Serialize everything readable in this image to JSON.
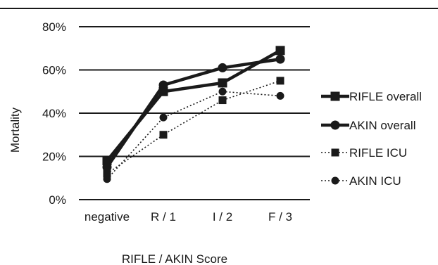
{
  "chart_data": {
    "type": "line",
    "title": "",
    "xlabel": "RIFLE / AKIN Score",
    "ylabel": "Mortality",
    "categories": [
      "negative",
      "R / 1",
      "I / 2",
      "F / 3"
    ],
    "y_ticks": [
      "0%",
      "20%",
      "40%",
      "60%",
      "80%"
    ],
    "ylim": [
      0,
      80
    ],
    "y_unit": "%",
    "grid": "horizontal major gridlines",
    "legend_position": "right",
    "series": [
      {
        "name": "RIFLE overall",
        "values": [
          18,
          50,
          54,
          69
        ],
        "line": "solid",
        "weight": "thick",
        "marker": "square"
      },
      {
        "name": "AKIN overall",
        "values": [
          15,
          53,
          61,
          65
        ],
        "line": "solid",
        "weight": "thick",
        "marker": "circle"
      },
      {
        "name": "RIFLE ICU",
        "values": [
          12,
          30,
          46,
          55
        ],
        "line": "dotted",
        "weight": "thin",
        "marker": "square"
      },
      {
        "name": "AKIN ICU",
        "values": [
          9.5,
          38,
          50,
          48
        ],
        "line": "dotted",
        "weight": "thin",
        "marker": "circle"
      }
    ]
  },
  "colors": {
    "line": "#1a1a1a",
    "grid": "#1a1a1a",
    "background": "#ffffff"
  }
}
